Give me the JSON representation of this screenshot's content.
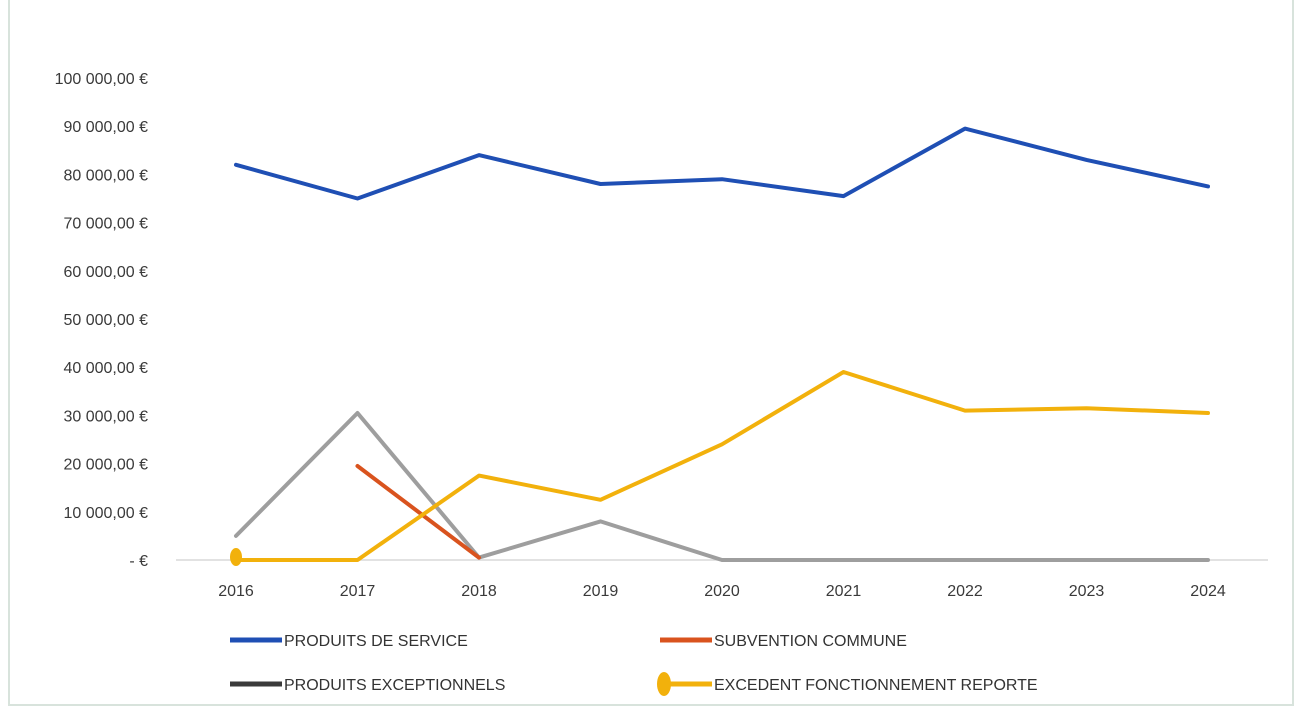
{
  "chart_data": {
    "type": "line",
    "title": "",
    "xlabel": "",
    "ylabel": "",
    "categories": [
      "2016",
      "2017",
      "2018",
      "2019",
      "2020",
      "2021",
      "2022",
      "2023",
      "2024"
    ],
    "yticks": [
      0,
      10000,
      20000,
      30000,
      40000,
      50000,
      60000,
      70000,
      80000,
      90000,
      100000
    ],
    "ytick_labels": [
      "-  €",
      "10 000,00 €",
      "20 000,00 €",
      "30 000,00 €",
      "40 000,00 €",
      "50 000,00 €",
      "60 000,00 €",
      "70 000,00 €",
      "80 000,00 €",
      "90 000,00 €",
      "100 000,00 €"
    ],
    "ylim": [
      0,
      100000
    ],
    "grid": false,
    "legend_position": "bottom",
    "series": [
      {
        "name": "PRODUITS DE SERVICE",
        "color": "#1f4fb4",
        "values": [
          82000,
          75000,
          84000,
          78000,
          79000,
          75500,
          89500,
          83000,
          77500
        ]
      },
      {
        "name": "SUBVENTION COMMUNE",
        "color": "#d9531e",
        "values": [
          null,
          19500,
          500,
          null,
          null,
          null,
          null,
          null,
          null
        ]
      },
      {
        "name": "PRODUITS EXCEPTIONNELS",
        "color": "#9e9e9e",
        "legend_color": "#3a3a3a",
        "values": [
          5000,
          30500,
          500,
          8000,
          0,
          0,
          0,
          0,
          0
        ]
      },
      {
        "name": "EXCEDENT FONCTIONNEMENT REPORTE",
        "color": "#f2b10c",
        "values": [
          0,
          0,
          17500,
          12500,
          24000,
          39000,
          31000,
          31500,
          30500
        ]
      }
    ]
  }
}
